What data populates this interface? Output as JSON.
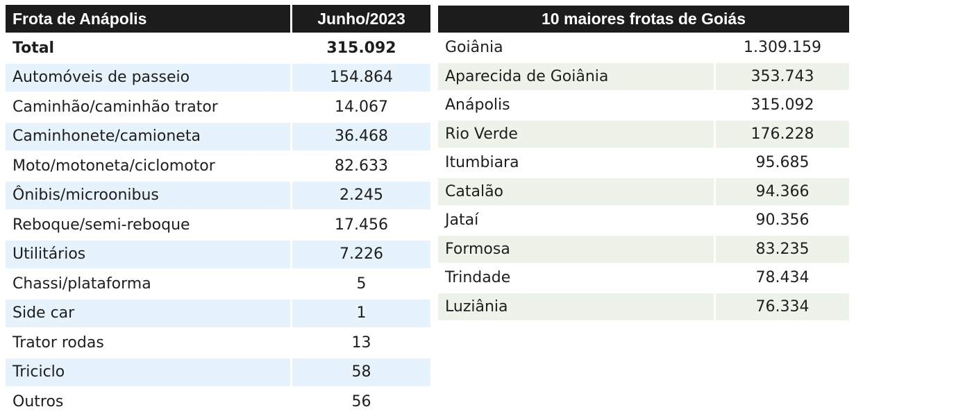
{
  "fleet_table": {
    "header": {
      "category": "Frota de Anápolis",
      "period": "Junho/2023"
    },
    "rows": [
      {
        "label": "Total",
        "value": "315.092"
      },
      {
        "label": "Automóveis de passeio",
        "value": "154.864"
      },
      {
        "label": "Caminhão/caminhão trator",
        "value": "14.067"
      },
      {
        "label": "Caminhonete/camioneta",
        "value": "36.468"
      },
      {
        "label": "Moto/motoneta/ciclomotor",
        "value": "82.633"
      },
      {
        "label": "Ônibis/microonibus",
        "value": "2.245"
      },
      {
        "label": "Reboque/semi-reboque",
        "value": "17.456"
      },
      {
        "label": "Utilitários",
        "value": "7.226"
      },
      {
        "label": "Chassi/plataforma",
        "value": "5"
      },
      {
        "label": "Side car",
        "value": "1"
      },
      {
        "label": "Trator rodas",
        "value": "13"
      },
      {
        "label": "Triciclo",
        "value": "58"
      },
      {
        "label": "Outros",
        "value": "56"
      }
    ]
  },
  "top10_table": {
    "title": "10 maiores frotas de Goiás",
    "rows": [
      {
        "city": "Goiânia",
        "value": "1.309.159"
      },
      {
        "city": "Aparecida de Goiânia",
        "value": "353.743"
      },
      {
        "city": "Anápolis",
        "value": "315.092"
      },
      {
        "city": "Rio Verde",
        "value": "176.228"
      },
      {
        "city": "Itumbiara",
        "value": "95.685"
      },
      {
        "city": "Catalão",
        "value": "94.366"
      },
      {
        "city": "Jataí",
        "value": "90.356"
      },
      {
        "city": "Formosa",
        "value": "83.235"
      },
      {
        "city": "Trindade",
        "value": "78.434"
      },
      {
        "city": "Luziânia",
        "value": "76.334"
      }
    ]
  },
  "colors": {
    "header_bg": "#1c1c1c",
    "header_text": "#ffffff",
    "fleet_stripe": "#e6f3fc",
    "top10_stripe": "#eef3ea"
  }
}
